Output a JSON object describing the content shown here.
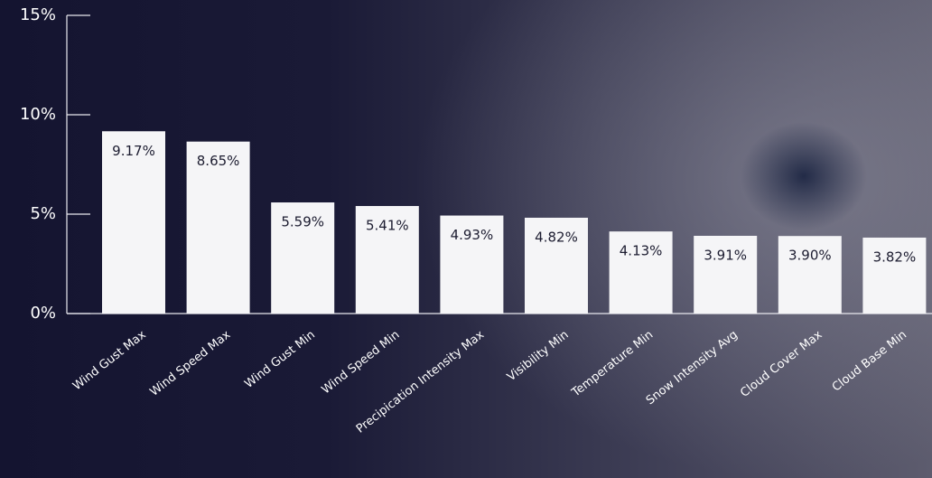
{
  "chart_data": {
    "type": "bar",
    "categories": [
      "Wind Gust Max",
      "Wind Speed Max",
      "Wind Gust Min",
      "Wind Speed Min",
      "Precipication Intensity Max",
      "Visibility Min",
      "Temperature Min",
      "Snow Intensity Avg",
      "Cloud Cover Max",
      "Cloud Base Min"
    ],
    "values": [
      9.17,
      8.65,
      5.59,
      5.41,
      4.93,
      4.82,
      4.13,
      3.91,
      3.9,
      3.82
    ],
    "value_labels": [
      "9.17%",
      "8.65%",
      "5.59%",
      "5.41%",
      "4.93%",
      "4.82%",
      "4.13%",
      "3.91%",
      "3.90%",
      "3.82%"
    ],
    "color": "#f5f5f7",
    "ylim": [
      0,
      15
    ],
    "yticks": [
      {
        "value": 0,
        "label": "0%"
      },
      {
        "value": 5,
        "label": "5%"
      },
      {
        "value": 10,
        "label": "10%"
      },
      {
        "value": 15,
        "label": "15%"
      }
    ]
  }
}
